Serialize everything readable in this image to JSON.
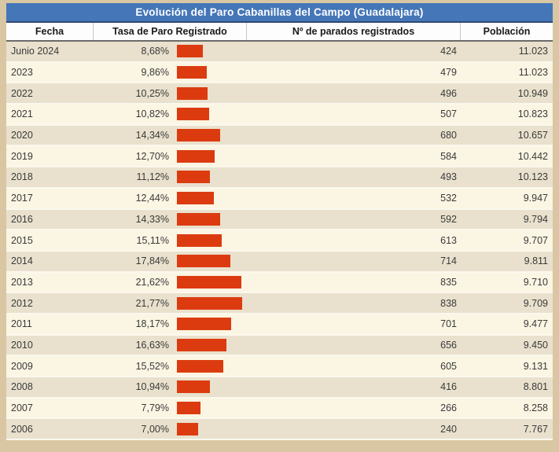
{
  "title": "Evolución del Paro Cabanillas del Campo (Guadalajara)",
  "table": {
    "columns": [
      "Fecha",
      "Tasa de Paro Registrado",
      "Nº de parados registrados",
      "Población"
    ],
    "rows": [
      {
        "fecha": "Junio 2024",
        "tasa": "8,68%",
        "tasa_value": 8.68,
        "parados": "424",
        "poblacion": "11.023"
      },
      {
        "fecha": "2023",
        "tasa": "9,86%",
        "tasa_value": 9.86,
        "parados": "479",
        "poblacion": "11.023"
      },
      {
        "fecha": "2022",
        "tasa": "10,25%",
        "tasa_value": 10.25,
        "parados": "496",
        "poblacion": "10.949"
      },
      {
        "fecha": "2021",
        "tasa": "10,82%",
        "tasa_value": 10.82,
        "parados": "507",
        "poblacion": "10.823"
      },
      {
        "fecha": "2020",
        "tasa": "14,34%",
        "tasa_value": 14.34,
        "parados": "680",
        "poblacion": "10.657"
      },
      {
        "fecha": "2019",
        "tasa": "12,70%",
        "tasa_value": 12.7,
        "parados": "584",
        "poblacion": "10.442"
      },
      {
        "fecha": "2018",
        "tasa": "11,12%",
        "tasa_value": 11.12,
        "parados": "493",
        "poblacion": "10.123"
      },
      {
        "fecha": "2017",
        "tasa": "12,44%",
        "tasa_value": 12.44,
        "parados": "532",
        "poblacion": "9.947"
      },
      {
        "fecha": "2016",
        "tasa": "14,33%",
        "tasa_value": 14.33,
        "parados": "592",
        "poblacion": "9.794"
      },
      {
        "fecha": "2015",
        "tasa": "15,11%",
        "tasa_value": 15.11,
        "parados": "613",
        "poblacion": "9.707"
      },
      {
        "fecha": "2014",
        "tasa": "17,84%",
        "tasa_value": 17.84,
        "parados": "714",
        "poblacion": "9.811"
      },
      {
        "fecha": "2013",
        "tasa": "21,62%",
        "tasa_value": 21.62,
        "parados": "835",
        "poblacion": "9.710"
      },
      {
        "fecha": "2012",
        "tasa": "21,77%",
        "tasa_value": 21.77,
        "parados": "838",
        "poblacion": "9.709"
      },
      {
        "fecha": "2011",
        "tasa": "18,17%",
        "tasa_value": 18.17,
        "parados": "701",
        "poblacion": "9.477"
      },
      {
        "fecha": "2010",
        "tasa": "16,63%",
        "tasa_value": 16.63,
        "parados": "656",
        "poblacion": "9.450"
      },
      {
        "fecha": "2009",
        "tasa": "15,52%",
        "tasa_value": 15.52,
        "parados": "605",
        "poblacion": "9.131"
      },
      {
        "fecha": "2008",
        "tasa": "10,94%",
        "tasa_value": 10.94,
        "parados": "416",
        "poblacion": "8.801"
      },
      {
        "fecha": "2007",
        "tasa": "7,79%",
        "tasa_value": 7.79,
        "parados": "266",
        "poblacion": "8.258"
      },
      {
        "fecha": "2006",
        "tasa": "7,00%",
        "tasa_value": 7.0,
        "parados": "240",
        "poblacion": "7.767"
      }
    ]
  },
  "colors": {
    "frame_bg": "#d8c7a2",
    "title_bg": "#4576b8",
    "title_text": "#ffffff",
    "title_border": "#2c4a75",
    "header_bg": "#fdfdfd",
    "row_odd_bg": "#e9e1cd",
    "row_even_bg": "#fbf5e3",
    "bar": "#dc3b10",
    "text": "#3a3a3a"
  },
  "chart_data": {
    "type": "table",
    "title": "Evolución del Paro Cabanillas del Campo (Guadalajara)",
    "columns": [
      "Fecha",
      "Tasa de Paro Registrado (%)",
      "Nº de parados registrados",
      "Población"
    ],
    "bar_column": 1,
    "bar_color": "#dc3b10",
    "rows": [
      [
        "Junio 2024",
        8.68,
        424,
        11023
      ],
      [
        "2023",
        9.86,
        479,
        11023
      ],
      [
        "2022",
        10.25,
        496,
        10949
      ],
      [
        "2021",
        10.82,
        507,
        10823
      ],
      [
        "2020",
        14.34,
        680,
        10657
      ],
      [
        "2019",
        12.7,
        584,
        10442
      ],
      [
        "2018",
        11.12,
        493,
        10123
      ],
      [
        "2017",
        12.44,
        532,
        9947
      ],
      [
        "2016",
        14.33,
        592,
        9794
      ],
      [
        "2015",
        15.11,
        613,
        9707
      ],
      [
        "2014",
        17.84,
        714,
        9811
      ],
      [
        "2013",
        21.62,
        835,
        9710
      ],
      [
        "2012",
        21.77,
        838,
        9709
      ],
      [
        "2011",
        18.17,
        701,
        9477
      ],
      [
        "2010",
        16.63,
        656,
        9450
      ],
      [
        "2009",
        15.52,
        605,
        9131
      ],
      [
        "2008",
        10.94,
        416,
        8801
      ],
      [
        "2007",
        7.79,
        266,
        8258
      ],
      [
        "2006",
        7.0,
        240,
        7767
      ]
    ]
  }
}
